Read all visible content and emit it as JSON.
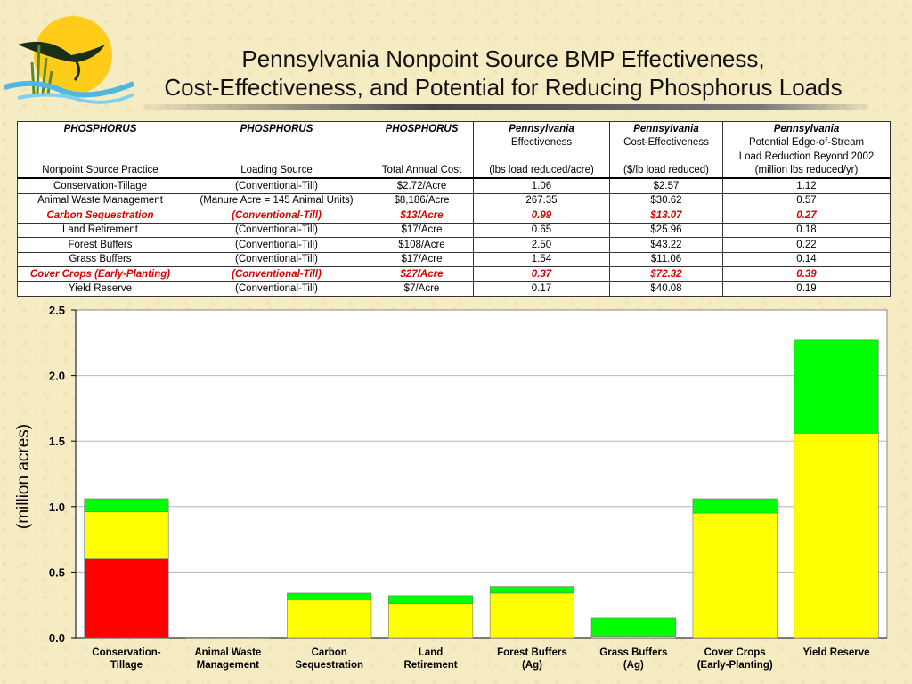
{
  "header": {
    "title_line1": "Pennsylvania Nonpoint Source BMP Effectiveness,",
    "title_line2": "Cost-Effectiveness, and Potential for Reducing Phosphorus Loads"
  },
  "table": {
    "header_rows": [
      [
        "PHOSPHORUS",
        "PHOSPHORUS",
        "PHOSPHORUS",
        "Pennsylvania",
        "Pennsylvania",
        "Pennsylvania"
      ],
      [
        "",
        "",
        "",
        "Effectiveness",
        "Cost-Effectiveness",
        "Potential Edge-of-Stream"
      ],
      [
        "",
        "",
        "",
        "",
        "",
        "Load Reduction Beyond 2002"
      ],
      [
        "Nonpoint Source Practice",
        "Loading Source",
        "Total Annual Cost",
        "(lbs load reduced/acre)",
        "($/lb load reduced)",
        "(million lbs reduced/yr)"
      ]
    ],
    "rows": [
      [
        "Conservation-Tillage",
        "(Conventional-Till)",
        "$2.72/Acre",
        "1.06",
        "$2.57",
        "1.12"
      ],
      [
        "Animal Waste Management",
        "(Manure Acre = 145 Animal Units)",
        "$8,186/Acre",
        "267.35",
        "$30.62",
        "0.57"
      ],
      [
        "Carbon Sequestration",
        "(Conventional-Till)",
        "$13/Acre",
        "0.99",
        "$13.07",
        "0.27"
      ],
      [
        "Land Retirement",
        "(Conventional-Till)",
        "$17/Acre",
        "0.65",
        "$25.96",
        "0.18"
      ],
      [
        "Forest Buffers",
        "(Conventional-Till)",
        "$108/Acre",
        "2.50",
        "$43.22",
        "0.22"
      ],
      [
        "Grass Buffers",
        "(Conventional-Till)",
        "$17/Acre",
        "1.54",
        "$11.06",
        "0.14"
      ],
      [
        "Cover Crops (Early-Planting)",
        "(Conventional-Till)",
        "$27/Acre",
        "0.37",
        "$72.32",
        "0.39"
      ],
      [
        "Yield Reserve",
        "(Conventional-Till)",
        "$7/Acre",
        "0.17",
        "$40.08",
        "0.19"
      ]
    ],
    "highlight_color": "#e00000"
  },
  "chart_data": {
    "type": "bar",
    "stacked": true,
    "title": "",
    "xlabel": "",
    "ylabel": "(million acres)",
    "ylim": [
      0,
      2.5
    ],
    "yticks": [
      "0.0",
      "0.5",
      "1.0",
      "1.5",
      "2.0",
      "2.5"
    ],
    "grid": true,
    "categories": [
      [
        "Conservation-",
        "Tillage"
      ],
      [
        "Animal Waste",
        "Management"
      ],
      [
        "Carbon",
        "Sequestration"
      ],
      [
        "Land",
        "Retirement"
      ],
      [
        "Forest Buffers",
        "(Ag)"
      ],
      [
        "Grass Buffers",
        "(Ag)"
      ],
      [
        "Cover Crops",
        "(Early-Planting)"
      ],
      [
        "Yield Reserve"
      ]
    ],
    "series": [
      {
        "color": "#ff0000",
        "values": [
          0.6,
          0,
          0,
          0,
          0,
          0,
          0,
          0
        ]
      },
      {
        "color": "#ffff00",
        "values": [
          0.36,
          0.005,
          0.29,
          0.26,
          0.34,
          0.01,
          0.95,
          1.56
        ]
      },
      {
        "color": "#00ff00",
        "values": [
          0.1,
          0,
          0.05,
          0.06,
          0.05,
          0.14,
          0.11,
          0.71
        ]
      }
    ]
  }
}
